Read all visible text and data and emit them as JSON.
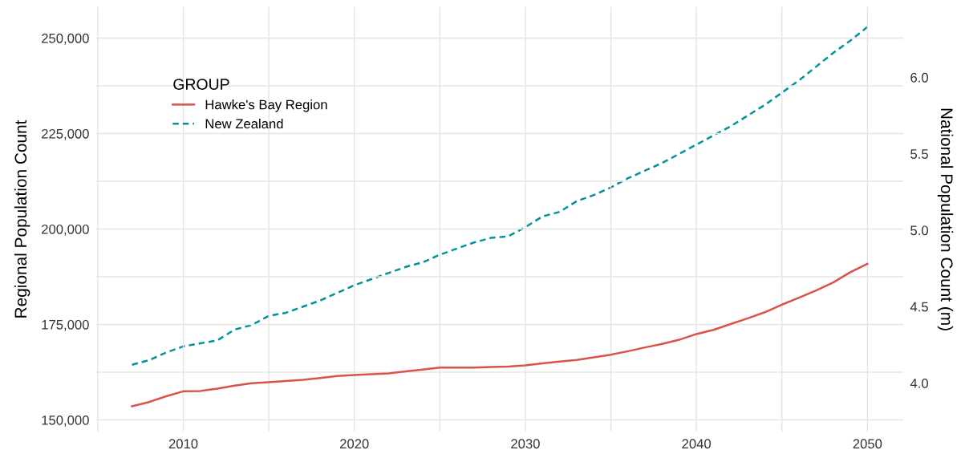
{
  "chart_data": {
    "type": "line",
    "ylabel": "Regional Population Count",
    "y2label": "National Population Count (m)",
    "legend_title": "GROUP",
    "legend": "top left",
    "grid": true,
    "x": [
      2007,
      2008,
      2009,
      2010,
      2011,
      2012,
      2013,
      2014,
      2015,
      2016,
      2017,
      2018,
      2019,
      2020,
      2021,
      2022,
      2023,
      2024,
      2025,
      2026,
      2027,
      2028,
      2029,
      2030,
      2031,
      2032,
      2033,
      2034,
      2035,
      2036,
      2037,
      2038,
      2039,
      2040,
      2041,
      2042,
      2043,
      2044,
      2045,
      2046,
      2047,
      2048,
      2049,
      2050
    ],
    "series": [
      {
        "name": "Hawke's Bay Region",
        "color": "#d9534a",
        "line_style": "solid",
        "values": [
          153600,
          154700,
          156200,
          157500,
          157600,
          158200,
          159000,
          159600,
          159900,
          160200,
          160500,
          161000,
          161500,
          161800,
          162000,
          162200,
          162700,
          163200,
          163700,
          163700,
          163700,
          163900,
          164000,
          164300,
          164800,
          165300,
          165700,
          166400,
          167100,
          168000,
          169000,
          169900,
          171000,
          172500,
          173600,
          175100,
          176600,
          178200,
          180200,
          182000,
          183900,
          186000,
          188700,
          190900
        ]
      },
      {
        "name": "New Zealand",
        "color": "#00939a",
        "line_style": "dashed",
        "axis": "y2",
        "values": [
          4.12,
          4.15,
          4.2,
          4.24,
          4.26,
          4.28,
          4.35,
          4.38,
          4.44,
          4.46,
          4.5,
          4.54,
          4.59,
          4.64,
          4.68,
          4.72,
          4.76,
          4.79,
          4.84,
          4.88,
          4.92,
          4.95,
          4.96,
          5.02,
          5.09,
          5.12,
          5.19,
          5.23,
          5.28,
          5.34,
          5.39,
          5.44,
          5.5,
          5.56,
          5.62,
          5.68,
          5.75,
          5.82,
          5.9,
          5.98,
          6.07,
          6.16,
          6.24,
          6.33
        ]
      }
    ],
    "xlim": [
      2004.9,
      2052.1
    ],
    "xticks": [
      {
        "value": 2005,
        "label": null
      },
      2010,
      {
        "value": 2015,
        "label": null
      },
      2020,
      {
        "value": 2025,
        "label": null
      },
      2030,
      {
        "value": 2035,
        "label": null
      },
      2040,
      {
        "value": 2045,
        "label": null
      },
      2050
    ],
    "ylim": [
      146850,
      258200
    ],
    "yticks": [
      {
        "value": 150000,
        "label": "150,000"
      },
      {
        "value": 162500,
        "label": null
      },
      {
        "value": 175000,
        "label": "175,000"
      },
      {
        "value": 187500,
        "label": null
      },
      {
        "value": 200000,
        "label": "200,000"
      },
      {
        "value": 212500,
        "label": null
      },
      {
        "value": 225000,
        "label": "225,000"
      },
      {
        "value": 237500,
        "label": null
      },
      {
        "value": 250000,
        "label": "250,000"
      }
    ],
    "y2lim": [
      3.68,
      6.462
    ],
    "y2ticks": [
      {
        "value": 4.0,
        "label": "4.0"
      },
      {
        "value": 4.5,
        "label": "4.5"
      },
      {
        "value": 5.0,
        "label": "5.0"
      },
      {
        "value": 5.5,
        "label": "5.5"
      },
      {
        "value": 6.0,
        "label": "6.0"
      }
    ]
  }
}
